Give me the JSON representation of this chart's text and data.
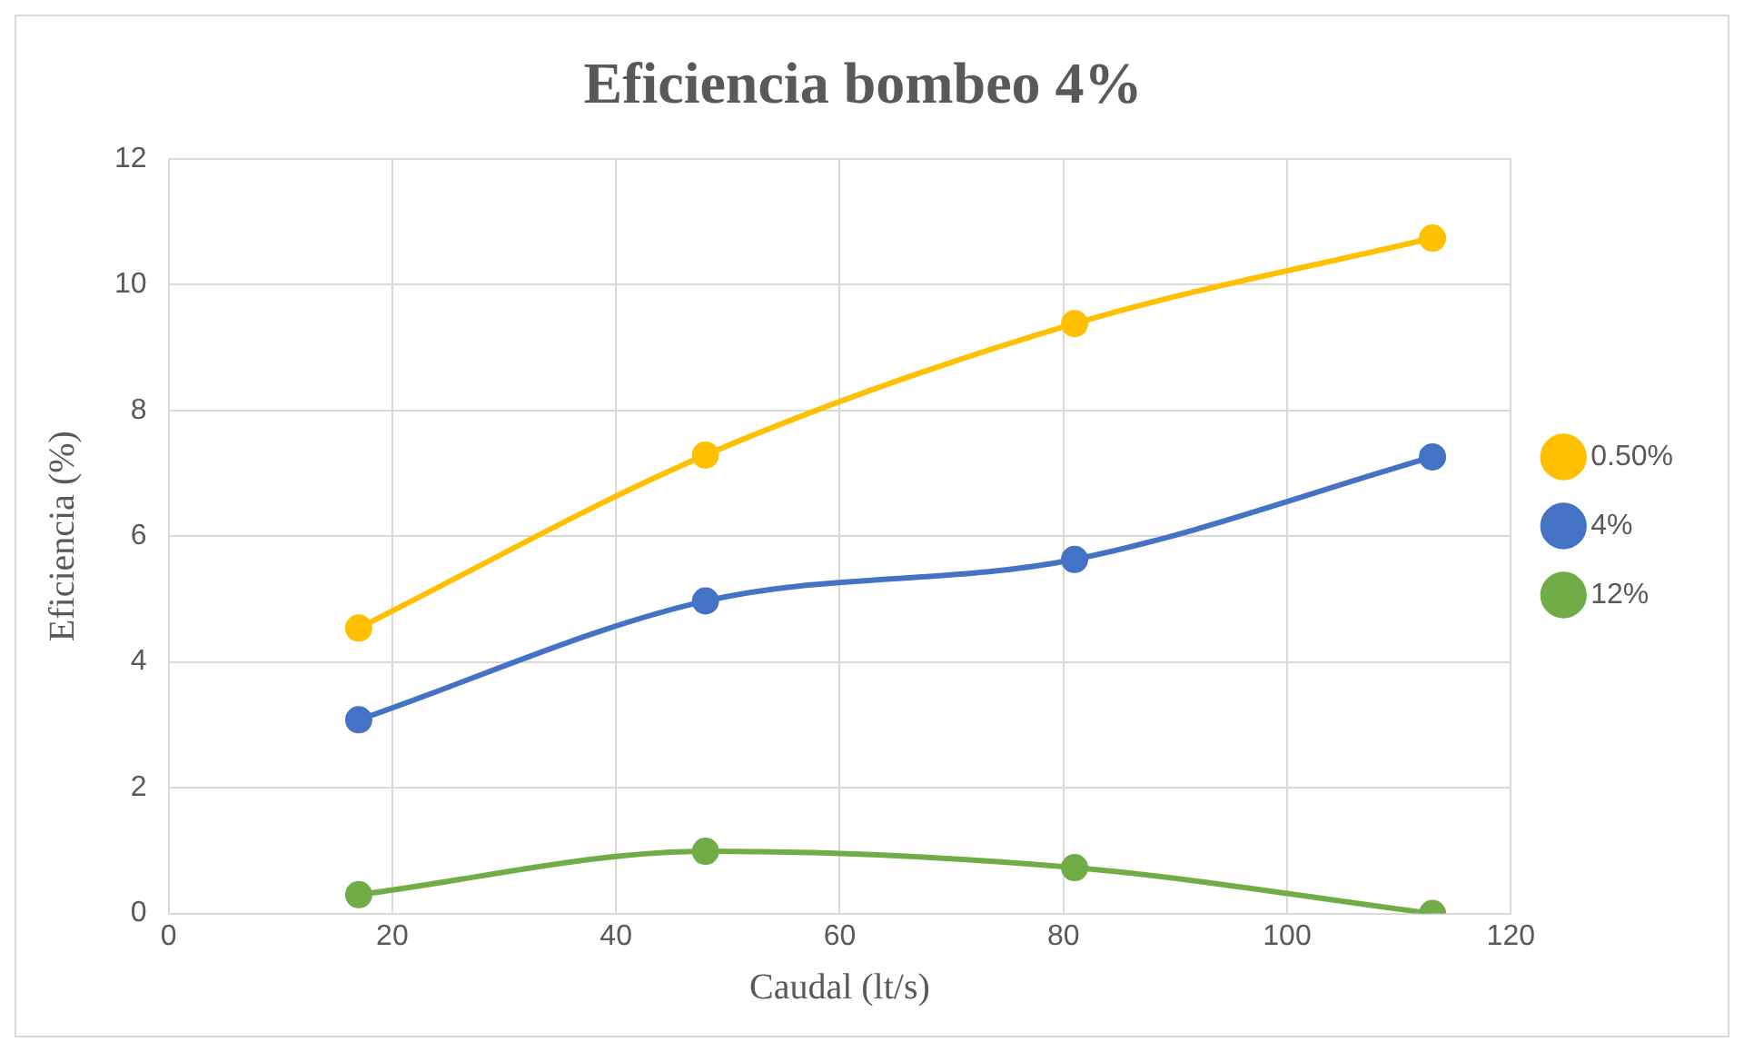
{
  "chart_data": {
    "type": "line",
    "title": "Eficiencia bombeo 4%",
    "xlabel": "Caudal (lt/s)",
    "ylabel": "Eficiencia (%)",
    "xlim": [
      0,
      120
    ],
    "xticks": [
      0,
      20,
      40,
      60,
      80,
      100,
      120
    ],
    "ylim": [
      0,
      12
    ],
    "yticks": [
      0,
      2,
      4,
      6,
      8,
      10,
      12
    ],
    "grid": true,
    "legend": "right",
    "marker": "circle",
    "line_style": "solid",
    "series": [
      {
        "name": "0.50%",
        "color": "#ffc000",
        "x": [
          17,
          48,
          81,
          113
        ],
        "values": [
          4.54,
          7.29,
          9.38,
          10.74
        ]
      },
      {
        "name": "4%",
        "color": "#4472c4",
        "x": [
          17,
          48,
          81,
          113
        ],
        "values": [
          3.08,
          4.97,
          5.63,
          7.26
        ]
      },
      {
        "name": "12%",
        "color": "#70ad47",
        "x": [
          17,
          48,
          81,
          113
        ],
        "values": [
          0.3,
          0.99,
          0.73,
          0
        ]
      }
    ]
  }
}
